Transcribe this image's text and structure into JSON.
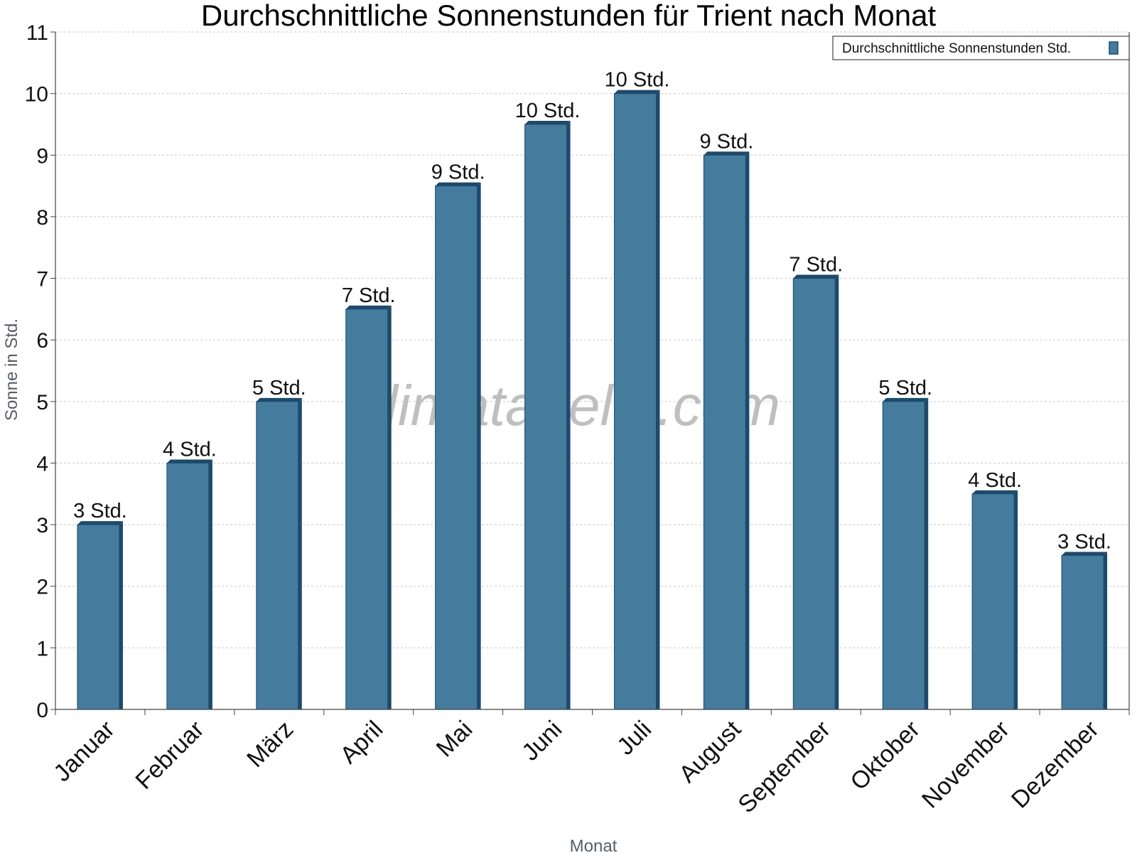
{
  "chart_data": {
    "type": "bar",
    "title": "Durchschnittliche Sonnenstunden für Trient nach Monat",
    "xlabel": "Monat",
    "ylabel": "Sonne in Std.",
    "categories": [
      "Januar",
      "Februar",
      "März",
      "April",
      "Mai",
      "Juni",
      "Juli",
      "August",
      "September",
      "Oktober",
      "November",
      "Dezember"
    ],
    "series": [
      {
        "name": "Durchschnittliche Sonnenstunden Std.",
        "values": [
          3,
          4,
          5,
          6.5,
          8.5,
          9.5,
          10,
          9,
          7,
          5,
          3.5,
          2.5
        ],
        "labels": [
          "3 Std.",
          "4 Std.",
          "5 Std.",
          "7 Std.",
          "9 Std.",
          "10 Std.",
          "10 Std.",
          "9 Std.",
          "7 Std.",
          "5 Std.",
          "4 Std.",
          "3 Std."
        ]
      }
    ],
    "ylim": [
      0,
      11
    ],
    "yticks": [
      "0",
      "1",
      "2",
      "3",
      "4",
      "5",
      "6",
      "7",
      "8",
      "9",
      "10",
      "11"
    ],
    "grid": true,
    "legend_position": "top-right",
    "bar_color": "#457b9d",
    "bar_edge_color": "#1d4a6b",
    "watermark": "klimatabelle.com"
  }
}
